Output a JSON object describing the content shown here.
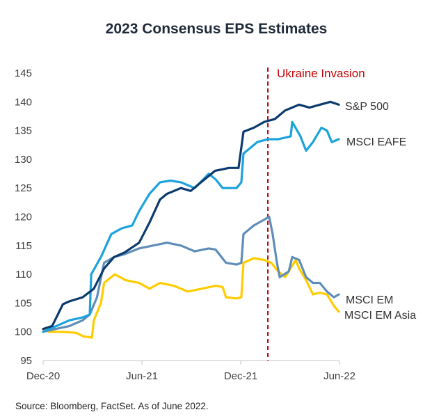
{
  "chart_data": {
    "type": "line",
    "title": "2023 Consensus EPS Estimates",
    "xlabel": "",
    "ylabel": "",
    "x_unit": "months since Dec-20",
    "xlim": [
      0,
      18
    ],
    "ylim": [
      95,
      145
    ],
    "y_ticks": [
      95,
      100,
      105,
      110,
      115,
      120,
      125,
      130,
      135,
      140,
      145
    ],
    "x_ticks": [
      {
        "value": 0,
        "label": "Dec-20"
      },
      {
        "value": 6,
        "label": "Jun-21"
      },
      {
        "value": 12,
        "label": "Dec-21"
      },
      {
        "value": 18,
        "label": "Jun-22"
      }
    ],
    "grid": false,
    "legend": "inline-right",
    "annotations": [
      {
        "type": "vline",
        "x": 13.65,
        "label": "Ukraine Invasion",
        "color": "#c00000",
        "style": "dashed"
      }
    ],
    "series": [
      {
        "name": "S&P 500",
        "color": "#0b3a6e",
        "x": [
          0,
          0.55,
          1.2,
          1.6,
          2.4,
          3.08,
          3.7,
          4.31,
          4.95,
          5.83,
          6.46,
          7.1,
          7.52,
          8.37,
          8.96,
          9.59,
          10.44,
          11.28,
          11.87,
          12.17,
          12.8,
          13.43,
          14.07,
          14.7,
          15.55,
          16.18,
          16.81,
          17.45,
          17.96
        ],
        "values": [
          100.5,
          101,
          104.8,
          105.3,
          106,
          107.5,
          111,
          113,
          113.8,
          115.5,
          119,
          123,
          124,
          125,
          124.5,
          126,
          128,
          128.5,
          128.5,
          134.8,
          135.5,
          136.5,
          137,
          138.5,
          139.5,
          139,
          139.5,
          140,
          139.5
        ]
      },
      {
        "name": "MSCI EAFE",
        "color": "#1aa3dc",
        "x": [
          0,
          1.6,
          2.4,
          2.83,
          2.92,
          3.51,
          4.14,
          4.78,
          5.41,
          5.83,
          6.46,
          7.1,
          7.73,
          8.37,
          9.21,
          10.06,
          10.48,
          10.9,
          11.75,
          12.04,
          12.17,
          12.59,
          13.01,
          13.65,
          14.28,
          15.04,
          15.13,
          15.63,
          15.97,
          16.39,
          16.9,
          17.24,
          17.53,
          17.96
        ],
        "values": [
          100,
          102,
          102.5,
          103,
          110,
          113,
          117,
          118,
          118.5,
          121,
          124,
          126,
          126.3,
          126,
          125,
          127.5,
          126.5,
          125,
          125,
          126,
          131,
          132,
          133,
          133.5,
          133.5,
          134,
          136.5,
          134,
          131.5,
          133,
          135.5,
          135,
          133,
          133.5
        ]
      },
      {
        "name": "MSCI EM",
        "color": "#5f8db9",
        "x": [
          0,
          0.76,
          1.6,
          2.4,
          2.83,
          3.27,
          3.7,
          4.31,
          4.95,
          5.83,
          6.67,
          7.52,
          8.37,
          9.21,
          10.06,
          10.48,
          11.11,
          11.75,
          12.04,
          12.17,
          12.8,
          13.43,
          13.73,
          13.94,
          14.2,
          14.37,
          14.92,
          15.13,
          15.55,
          15.97,
          16.39,
          16.81,
          17.24,
          17.66,
          17.96
        ],
        "values": [
          100,
          100.5,
          101,
          102,
          103,
          106,
          112,
          113,
          113.5,
          114.5,
          115,
          115.5,
          115,
          114,
          114.5,
          114.3,
          112,
          111.7,
          112,
          117,
          118.5,
          119.5,
          120,
          117,
          112,
          109.5,
          110.5,
          113,
          112.5,
          109.5,
          108.5,
          108.5,
          107,
          106,
          106.5
        ]
      },
      {
        "name": "MSCI EM Asia",
        "color": "#ffcc00",
        "x": [
          0,
          0.34,
          1.18,
          2.03,
          2.45,
          2.96,
          3.08,
          3.51,
          3.7,
          4.35,
          4.99,
          5.83,
          6.46,
          7.1,
          7.94,
          8.79,
          9.63,
          10.48,
          10.9,
          11.11,
          11.75,
          12.04,
          12.17,
          12.8,
          13.43,
          13.86,
          14.28,
          14.7,
          15.13,
          15.34,
          15.55,
          15.97,
          16.39,
          16.81,
          17.24,
          17.66,
          17.96
        ],
        "values": [
          100.5,
          100,
          100,
          99.8,
          99.2,
          99,
          102,
          105,
          108.5,
          110,
          109,
          108.5,
          107.5,
          108.5,
          108,
          107,
          107.5,
          108,
          107.8,
          106,
          105.8,
          106,
          112,
          112.8,
          112.5,
          112,
          110.5,
          109.5,
          111.5,
          112.5,
          111,
          109,
          106.5,
          106.8,
          106.5,
          104.5,
          103.5
        ]
      }
    ],
    "series_labels": [
      "S&P 500",
      "MSCI EAFE",
      "MSCI EM",
      "MSCI EM Asia"
    ]
  },
  "footer": {
    "source": "Source: Bloomberg, FactSet. As of June 2022."
  },
  "colors": {
    "axis": "#d9d9d9",
    "annotation": "#c00000",
    "title": "#1f2a38"
  }
}
